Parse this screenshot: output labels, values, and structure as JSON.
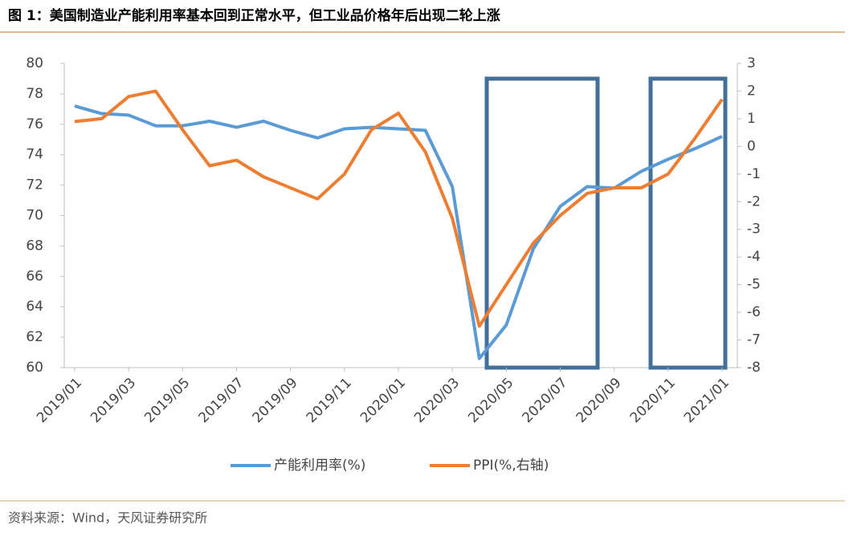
{
  "chart_data": {
    "type": "line",
    "title": "图 1：美国制造业产能利用率基本回到正常水平，但工业品价格年后出现二轮上涨",
    "source": "资料来源：Wind，天风证券研究所",
    "categories": [
      "2019/01",
      null,
      "2019/03",
      null,
      "2019/05",
      null,
      "2019/07",
      null,
      "2019/09",
      null,
      "2019/11",
      null,
      "2020/01",
      null,
      "2020/03",
      null,
      "2020/05",
      null,
      "2020/07",
      null,
      "2020/09",
      null,
      "2020/11",
      null,
      "2021/01"
    ],
    "series": [
      {
        "name": "产能利用率(%)",
        "color": "#5b9bd5",
        "values": [
          77.2,
          76.7,
          76.6,
          75.9,
          75.9,
          76.2,
          75.8,
          76.2,
          75.6,
          75.1,
          75.7,
          75.8,
          75.7,
          75.6,
          71.9,
          60.6,
          62.8,
          67.8,
          70.6,
          71.9,
          71.8,
          72.9,
          73.7,
          74.4,
          75.2
        ]
      },
      {
        "name": "PPI(%,右轴)",
        "color": "#ed7d31",
        "axis": "y2",
        "values": [
          0.9,
          1.0,
          1.8,
          2.0,
          0.6,
          -0.7,
          -0.5,
          -1.1,
          -1.5,
          -1.9,
          -1.0,
          0.6,
          1.2,
          -0.2,
          -2.6,
          -6.5,
          -5.0,
          -3.5,
          -2.5,
          -1.7,
          -1.5,
          -1.5,
          -1.0,
          0.3,
          1.7
        ]
      }
    ],
    "ylim": [
      60,
      80
    ],
    "yticks": [
      60,
      62,
      64,
      66,
      68,
      70,
      72,
      74,
      76,
      78,
      80
    ],
    "y2lim": [
      -8,
      3
    ],
    "y2ticks": [
      -8,
      -7,
      -6,
      -5,
      -4,
      -3,
      -2,
      -1,
      0,
      1,
      2,
      3
    ],
    "legend": "bottom"
  }
}
